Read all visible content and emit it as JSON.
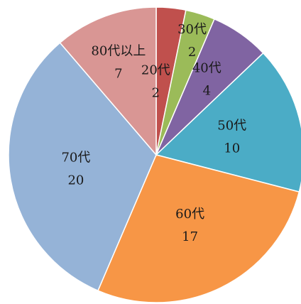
{
  "chart_data": {
    "type": "pie",
    "title": "",
    "start_angle_deg": 0,
    "direction": "clockwise",
    "slices": [
      {
        "label": "20代",
        "value": 2,
        "color": "#c0504d"
      },
      {
        "label": "30代",
        "value": 2,
        "color": "#9bbb59"
      },
      {
        "label": "40代",
        "value": 4,
        "color": "#8064a2"
      },
      {
        "label": "50代",
        "value": 10,
        "color": "#4bacc6"
      },
      {
        "label": "60代",
        "value": 17,
        "color": "#f79646"
      },
      {
        "label": "70代",
        "value": 20,
        "color": "#95b3d7"
      },
      {
        "label": "80代以上",
        "value": 7,
        "color": "#d99694"
      }
    ]
  }
}
